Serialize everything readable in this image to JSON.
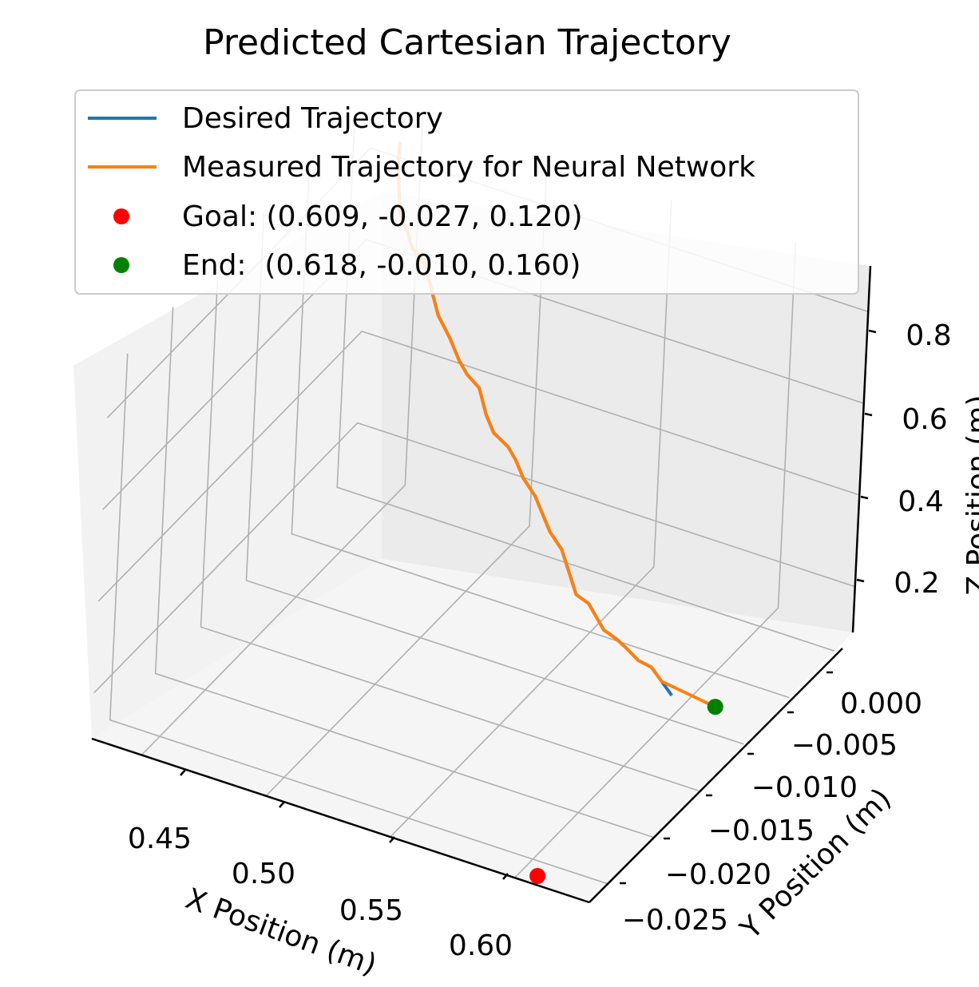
{
  "chart_data": {
    "type": "line",
    "projection": "3d",
    "title": "Predicted Cartesian Trajectory",
    "xlabel": "X Position (m)",
    "ylabel": "Y Position (m)",
    "zlabel": "Z Position (m)",
    "xticks": [
      "0.45",
      "0.50",
      "0.55",
      "0.60"
    ],
    "yticks": [
      "0.000",
      "−0.005",
      "−0.010",
      "−0.015",
      "−0.020",
      "−0.025"
    ],
    "zticks": [
      "0.2",
      "0.4",
      "0.6",
      "0.8"
    ],
    "xlim": [
      0.43,
      0.63
    ],
    "ylim": [
      -0.027,
      0.002
    ],
    "zlim": [
      0.1,
      0.9
    ],
    "grid": true,
    "legend_position": "top",
    "series": [
      {
        "name": "Desired Trajectory",
        "color": "#1f77b4",
        "x": [
          0.445,
          0.448,
          0.453,
          0.458,
          0.462,
          0.468,
          0.472,
          0.477,
          0.482,
          0.488,
          0.493,
          0.498,
          0.503,
          0.508,
          0.514,
          0.519,
          0.524,
          0.529,
          0.534,
          0.539,
          0.544,
          0.549,
          0.554,
          0.559,
          0.564,
          0.569,
          0.574,
          0.58,
          0.586,
          0.592,
          0.598,
          0.604
        ],
        "y": [
          0.001,
          0.0,
          -0.001,
          -0.0015,
          -0.002,
          -0.0022,
          -0.0025,
          -0.003,
          -0.003,
          -0.0035,
          -0.004,
          -0.004,
          -0.0045,
          -0.005,
          -0.005,
          -0.0055,
          -0.006,
          -0.006,
          -0.0065,
          -0.007,
          -0.007,
          -0.0075,
          -0.008,
          -0.008,
          -0.0085,
          -0.009,
          -0.009,
          -0.0095,
          -0.0098,
          -0.01,
          -0.0105,
          -0.011
        ],
        "z": [
          0.86,
          0.84,
          0.76,
          0.74,
          0.72,
          0.7,
          0.66,
          0.62,
          0.58,
          0.55,
          0.54,
          0.52,
          0.48,
          0.46,
          0.44,
          0.43,
          0.41,
          0.38,
          0.36,
          0.34,
          0.31,
          0.28,
          0.25,
          0.24,
          0.23,
          0.22,
          0.21,
          0.21,
          0.2,
          0.2,
          0.19,
          0.18
        ]
      },
      {
        "name": "Measured Trajectory for Neural Network",
        "color": "#ff7f0e",
        "x": [
          0.445,
          0.448,
          0.453,
          0.458,
          0.462,
          0.468,
          0.472,
          0.477,
          0.482,
          0.488,
          0.493,
          0.498,
          0.503,
          0.508,
          0.514,
          0.519,
          0.524,
          0.529,
          0.534,
          0.539,
          0.544,
          0.549,
          0.554,
          0.559,
          0.564,
          0.569,
          0.574,
          0.58,
          0.586,
          0.592,
          0.598,
          0.618
        ],
        "y": [
          0.001,
          0.0,
          -0.001,
          -0.0015,
          -0.002,
          -0.0022,
          -0.0025,
          -0.003,
          -0.003,
          -0.0035,
          -0.004,
          -0.004,
          -0.0045,
          -0.005,
          -0.005,
          -0.0055,
          -0.006,
          -0.006,
          -0.0065,
          -0.007,
          -0.007,
          -0.0075,
          -0.008,
          -0.008,
          -0.0085,
          -0.009,
          -0.009,
          -0.0095,
          -0.0098,
          -0.01,
          -0.0105,
          -0.01
        ],
        "z": [
          0.86,
          0.84,
          0.76,
          0.74,
          0.72,
          0.7,
          0.66,
          0.62,
          0.58,
          0.55,
          0.54,
          0.52,
          0.48,
          0.46,
          0.44,
          0.43,
          0.41,
          0.38,
          0.36,
          0.34,
          0.31,
          0.28,
          0.25,
          0.24,
          0.23,
          0.22,
          0.21,
          0.21,
          0.2,
          0.2,
          0.19,
          0.16
        ]
      }
    ],
    "markers": [
      {
        "name": "Goal: (0.609, -0.027, 0.120)",
        "color": "#ff0000",
        "x": 0.609,
        "y": -0.027,
        "z": 0.12
      },
      {
        "name": "End:  (0.618, -0.010, 0.160)",
        "color": "#008000",
        "x": 0.618,
        "y": -0.01,
        "z": 0.16
      }
    ]
  }
}
